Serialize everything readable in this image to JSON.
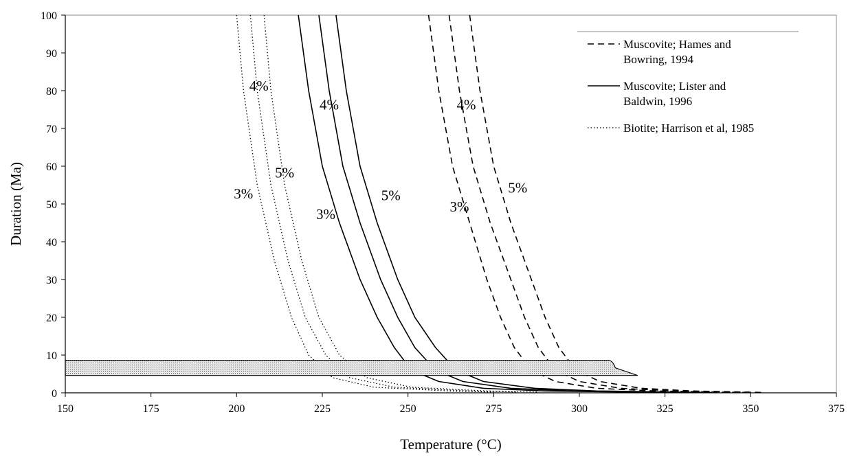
{
  "chart_data": {
    "type": "line",
    "xlabel": "Temperature (°C)",
    "ylabel": "Duration (Ma)",
    "xlim": [
      150,
      375
    ],
    "ylim": [
      0,
      100
    ],
    "xticks": [
      150,
      175,
      200,
      225,
      250,
      275,
      300,
      325,
      350,
      375
    ],
    "yticks": [
      0,
      10,
      20,
      30,
      40,
      50,
      60,
      70,
      80,
      90,
      100
    ],
    "grid": false,
    "legend_position": "top-right",
    "legend": [
      {
        "name": "Muscovite;  Hames and",
        "name2": "Bowring, 1994",
        "style": "dashed"
      },
      {
        "name": "Muscovite; Lister and",
        "name2": "Baldwin, 1996",
        "style": "solid"
      },
      {
        "name": "Biotite;  Harrison et al, 1985",
        "name2": "",
        "style": "dotted"
      }
    ],
    "series": [
      {
        "group": "biotite",
        "style": "dotted",
        "points": [
          [
            200,
            100
          ],
          [
            202,
            80
          ],
          [
            206,
            55
          ],
          [
            211,
            35
          ],
          [
            216,
            20
          ],
          [
            221,
            10
          ],
          [
            228,
            4
          ],
          [
            240,
            1.5
          ],
          [
            262,
            0.5
          ],
          [
            275,
            0.2
          ]
        ]
      },
      {
        "group": "biotite",
        "style": "dotted",
        "points": [
          [
            204,
            100
          ],
          [
            206,
            80
          ],
          [
            210,
            55
          ],
          [
            215,
            35
          ],
          [
            220,
            20
          ],
          [
            226,
            10
          ],
          [
            233,
            4
          ],
          [
            246,
            1.5
          ],
          [
            268,
            0.5
          ],
          [
            282,
            0.2
          ]
        ]
      },
      {
        "group": "biotite",
        "style": "dotted",
        "points": [
          [
            208,
            100
          ],
          [
            210,
            80
          ],
          [
            214,
            55
          ],
          [
            219,
            35
          ],
          [
            224,
            20
          ],
          [
            230,
            10
          ],
          [
            238,
            4
          ],
          [
            251,
            1.5
          ],
          [
            273,
            0.5
          ],
          [
            288,
            0.2
          ]
        ]
      },
      {
        "group": "lister",
        "style": "solid",
        "points": [
          [
            218,
            100
          ],
          [
            221,
            80
          ],
          [
            225,
            60
          ],
          [
            230,
            45
          ],
          [
            236,
            30
          ],
          [
            241,
            20
          ],
          [
            246,
            12
          ],
          [
            251,
            6
          ],
          [
            259,
            3
          ],
          [
            272,
            1.2
          ],
          [
            290,
            0.5
          ],
          [
            315,
            0.2
          ],
          [
            330,
            0.1
          ]
        ]
      },
      {
        "group": "lister",
        "style": "solid",
        "points": [
          [
            224,
            100
          ],
          [
            227,
            80
          ],
          [
            231,
            60
          ],
          [
            236,
            45
          ],
          [
            242,
            30
          ],
          [
            247,
            20
          ],
          [
            252,
            12
          ],
          [
            258,
            6
          ],
          [
            266,
            3
          ],
          [
            280,
            1.2
          ],
          [
            298,
            0.5
          ],
          [
            322,
            0.2
          ],
          [
            335,
            0.1
          ]
        ]
      },
      {
        "group": "lister",
        "style": "solid",
        "points": [
          [
            229,
            100
          ],
          [
            232,
            80
          ],
          [
            236,
            60
          ],
          [
            241,
            45
          ],
          [
            247,
            30
          ],
          [
            252,
            20
          ],
          [
            258,
            12
          ],
          [
            264,
            6
          ],
          [
            272,
            3
          ],
          [
            287,
            1.2
          ],
          [
            305,
            0.5
          ],
          [
            328,
            0.2
          ],
          [
            340,
            0.1
          ]
        ]
      },
      {
        "group": "hames",
        "style": "dashed",
        "points": [
          [
            256,
            100
          ],
          [
            259,
            80
          ],
          [
            263,
            60
          ],
          [
            268,
            45
          ],
          [
            273,
            30
          ],
          [
            277,
            20
          ],
          [
            281,
            12
          ],
          [
            286,
            6
          ],
          [
            293,
            3
          ],
          [
            305,
            1.2
          ],
          [
            322,
            0.5
          ],
          [
            340,
            0.2
          ],
          [
            350,
            0.1
          ]
        ]
      },
      {
        "group": "hames",
        "style": "dashed",
        "points": [
          [
            262,
            100
          ],
          [
            265,
            80
          ],
          [
            269,
            60
          ],
          [
            274,
            45
          ],
          [
            280,
            30
          ],
          [
            284,
            20
          ],
          [
            288,
            12
          ],
          [
            293,
            6
          ],
          [
            300,
            3
          ],
          [
            312,
            1.2
          ],
          [
            328,
            0.5
          ],
          [
            345,
            0.2
          ],
          [
            352,
            0.1
          ]
        ]
      },
      {
        "group": "hames",
        "style": "dashed",
        "points": [
          [
            268,
            100
          ],
          [
            271,
            80
          ],
          [
            275,
            60
          ],
          [
            280,
            45
          ],
          [
            286,
            30
          ],
          [
            290,
            20
          ],
          [
            294,
            12
          ],
          [
            299,
            6
          ],
          [
            306,
            3
          ],
          [
            318,
            1.2
          ],
          [
            333,
            0.5
          ],
          [
            348,
            0.2
          ],
          [
            354,
            0.1
          ]
        ]
      }
    ],
    "band": {
      "x_start": 150,
      "x_end": 308.5,
      "x_tip": 317,
      "y_low": 4.6,
      "y_high": 8.6,
      "fill": "#d0d0d0"
    },
    "annotations": [
      {
        "text": "4%",
        "x": 206.5,
        "y": 80
      },
      {
        "text": "5%",
        "x": 214,
        "y": 57
      },
      {
        "text": "3%",
        "x": 202,
        "y": 51.5
      },
      {
        "text": "4%",
        "x": 227,
        "y": 75
      },
      {
        "text": "3%",
        "x": 226,
        "y": 46
      },
      {
        "text": "5%",
        "x": 245,
        "y": 51
      },
      {
        "text": "4%",
        "x": 267,
        "y": 75
      },
      {
        "text": "3%",
        "x": 265,
        "y": 48
      },
      {
        "text": "5%",
        "x": 282,
        "y": 53
      }
    ],
    "colors": {
      "line": "#000000",
      "axis": "#000000",
      "band": "#d0d0d0"
    }
  }
}
